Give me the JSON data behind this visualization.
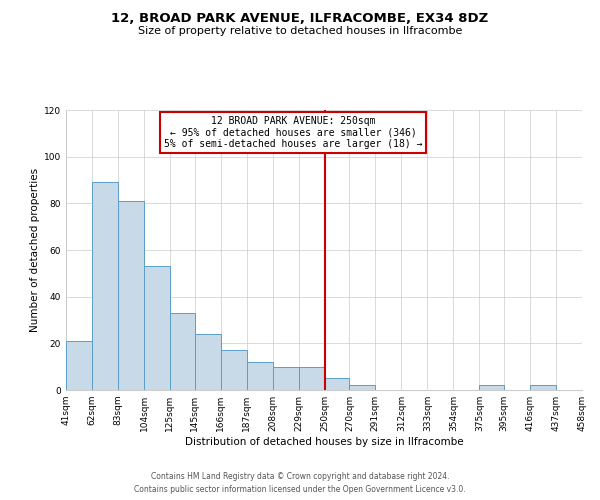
{
  "title": "12, BROAD PARK AVENUE, ILFRACOMBE, EX34 8DZ",
  "subtitle": "Size of property relative to detached houses in Ilfracombe",
  "xlabel": "Distribution of detached houses by size in Ilfracombe",
  "ylabel": "Number of detached properties",
  "bins": [
    41,
    62,
    83,
    104,
    125,
    145,
    166,
    187,
    208,
    229,
    250,
    270,
    291,
    312,
    333,
    354,
    375,
    395,
    416,
    437,
    458
  ],
  "counts": [
    21,
    89,
    81,
    53,
    33,
    24,
    17,
    12,
    10,
    10,
    5,
    2,
    0,
    0,
    0,
    0,
    2,
    0,
    2,
    0
  ],
  "tick_labels": [
    "41sqm",
    "62sqm",
    "83sqm",
    "104sqm",
    "125sqm",
    "145sqm",
    "166sqm",
    "187sqm",
    "208sqm",
    "229sqm",
    "250sqm",
    "270sqm",
    "291sqm",
    "312sqm",
    "333sqm",
    "354sqm",
    "375sqm",
    "395sqm",
    "416sqm",
    "437sqm",
    "458sqm"
  ],
  "bar_color": "#c8d9e8",
  "bar_edge_color": "#5a9ec9",
  "vline_x": 250,
  "vline_color": "#cc0000",
  "ylim": [
    0,
    120
  ],
  "yticks": [
    0,
    20,
    40,
    60,
    80,
    100,
    120
  ],
  "annotation_title": "12 BROAD PARK AVENUE: 250sqm",
  "annotation_line1": "← 95% of detached houses are smaller (346)",
  "annotation_line2": "5% of semi-detached houses are larger (18) →",
  "annotation_box_color": "#ffffff",
  "annotation_box_edge": "#cc0000",
  "footer1": "Contains HM Land Registry data © Crown copyright and database right 2024.",
  "footer2": "Contains public sector information licensed under the Open Government Licence v3.0.",
  "background_color": "#ffffff",
  "grid_color": "#cccccc",
  "title_fontsize": 9.5,
  "subtitle_fontsize": 8,
  "ylabel_fontsize": 7.5,
  "xlabel_fontsize": 7.5,
  "tick_fontsize": 6.5,
  "annot_fontsize": 7,
  "footer_fontsize": 5.5
}
